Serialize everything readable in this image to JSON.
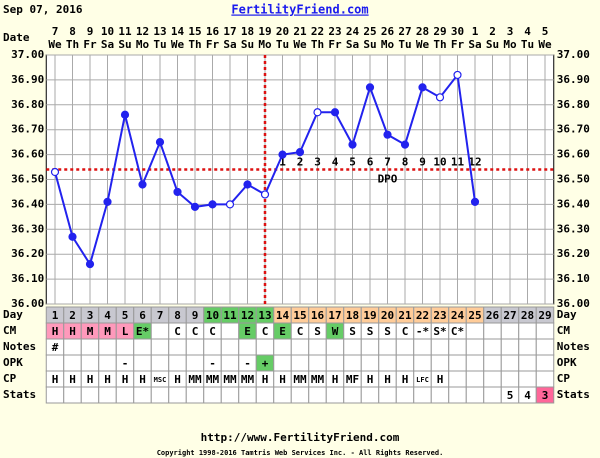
{
  "chart_data": {
    "type": "line",
    "title": "Sep 07, 2016",
    "site": "FertilityFriend.com",
    "date_label": "Date",
    "dates": [
      7,
      8,
      9,
      10,
      11,
      12,
      13,
      14,
      15,
      16,
      17,
      18,
      19,
      20,
      21,
      22,
      23,
      24,
      25,
      26,
      27,
      28,
      29,
      30,
      1,
      2,
      3,
      4,
      5
    ],
    "weekdays": [
      "We",
      "Th",
      "Fr",
      "Sa",
      "Su",
      "Mo",
      "Tu",
      "We",
      "Th",
      "Fr",
      "Sa",
      "Su",
      "Mo",
      "Tu",
      "We",
      "Th",
      "Fr",
      "Sa",
      "Su",
      "Mo",
      "Tu",
      "We",
      "Th",
      "Fr",
      "Sa",
      "Su",
      "Mo",
      "Tu",
      "We"
    ],
    "values": [
      36.53,
      36.27,
      36.16,
      36.41,
      36.76,
      36.48,
      36.65,
      36.45,
      36.39,
      36.4,
      36.4,
      36.48,
      36.44,
      36.6,
      36.61,
      36.77,
      36.77,
      36.64,
      36.87,
      36.68,
      36.64,
      36.87,
      36.83,
      36.92,
      36.41,
      null,
      null,
      null,
      null
    ],
    "markers": [
      "open",
      "filled",
      "filled",
      "filled",
      "filled",
      "filled",
      "filled",
      "filled",
      "filled",
      "filled",
      "open",
      "filled",
      "open",
      "filled",
      "filled",
      "open",
      "filled",
      "filled",
      "filled",
      "filled",
      "filled",
      "filled",
      "open",
      "open",
      "filled",
      null,
      null,
      null,
      null
    ],
    "color": "#2222ee",
    "ylim": [
      36.0,
      37.0
    ],
    "yticks": [
      {
        "value": 36.0,
        "label": "36.00"
      },
      {
        "value": 36.1,
        "label": "36.10"
      },
      {
        "value": 36.2,
        "label": "36.20"
      },
      {
        "value": 36.3,
        "label": "36.30"
      },
      {
        "value": 36.4,
        "label": "36.40"
      },
      {
        "value": 36.5,
        "label": "36.50"
      },
      {
        "value": 36.6,
        "label": "36.60"
      },
      {
        "value": 36.7,
        "label": "36.70"
      },
      {
        "value": 36.8,
        "label": "36.80"
      },
      {
        "value": 36.9,
        "label": "36.90"
      },
      {
        "value": 37.0,
        "label": "37.00"
      }
    ],
    "grid": true,
    "coverline": 36.54,
    "ovulation_day": 13,
    "marker_line_color": "#dd1111",
    "dpo": [
      null,
      null,
      null,
      null,
      null,
      null,
      null,
      null,
      null,
      null,
      null,
      null,
      null,
      1,
      2,
      3,
      4,
      5,
      6,
      7,
      8,
      9,
      10,
      11,
      12,
      null,
      null,
      null,
      null
    ],
    "dpo_label": "DPO",
    "day_label": "Day",
    "days": [
      1,
      2,
      3,
      4,
      5,
      6,
      7,
      8,
      9,
      10,
      11,
      12,
      13,
      14,
      15,
      16,
      17,
      18,
      19,
      20,
      21,
      22,
      23,
      24,
      25,
      26,
      27,
      28,
      29
    ],
    "day_colors": [
      "#c8c8d0",
      "#c8c8d0",
      "#c8c8d0",
      "#c8c8d0",
      "#c8c8d0",
      "#c8c8d0",
      "#c8c8d0",
      "#c8c8d0",
      "#c8c8d0",
      "#66cc66",
      "#66cc66",
      "#66cc66",
      "#66cc66",
      "#ffcc99",
      "#ffcc99",
      "#ffcc99",
      "#ffcc99",
      "#ffcc99",
      "#ffcc99",
      "#ffcc99",
      "#ffcc99",
      "#ffcc99",
      "#ffcc99",
      "#ffcc99",
      "#ffcc99",
      "#c8c8d0",
      "#c8c8d0",
      "#c8c8d0",
      "#c8c8d0"
    ],
    "rows": [
      {
        "label": "CM",
        "cells": [
          "H",
          "H",
          "M",
          "M",
          "L",
          "E*",
          null,
          "C",
          "C",
          "C",
          null,
          "E",
          "C",
          "E",
          "C",
          "S",
          "W",
          "S",
          "S",
          "S",
          "C",
          "-*",
          "S*",
          "C*",
          null,
          null,
          null,
          null,
          null
        ],
        "colors": [
          "#ff99bb",
          "#ff99bb",
          "#ff99bb",
          "#ff99bb",
          "#ff99bb",
          "#66cc66",
          null,
          null,
          null,
          null,
          null,
          "#66cc66",
          null,
          "#66cc66",
          null,
          null,
          "#66cc66",
          null,
          null,
          null,
          null,
          null,
          null,
          null,
          null,
          null,
          null,
          null,
          null
        ]
      },
      {
        "label": "Notes",
        "cells": [
          "#",
          null,
          null,
          null,
          null,
          null,
          null,
          null,
          null,
          null,
          null,
          null,
          null,
          null,
          null,
          null,
          null,
          null,
          null,
          null,
          null,
          null,
          null,
          null,
          null,
          null,
          null,
          null,
          null
        ],
        "colors": [
          null,
          null,
          null,
          null,
          null,
          null,
          null,
          null,
          null,
          null,
          null,
          null,
          null,
          null,
          null,
          null,
          null,
          null,
          null,
          null,
          null,
          null,
          null,
          null,
          null,
          null,
          null,
          null,
          null
        ]
      },
      {
        "label": "OPK",
        "cells": [
          null,
          null,
          null,
          null,
          "-",
          null,
          null,
          null,
          null,
          "-",
          null,
          "-",
          "+",
          null,
          null,
          null,
          null,
          null,
          null,
          null,
          null,
          null,
          null,
          null,
          null,
          null,
          null,
          null,
          null
        ],
        "colors": [
          null,
          null,
          null,
          null,
          null,
          null,
          null,
          null,
          null,
          null,
          null,
          null,
          "#66cc66",
          null,
          null,
          null,
          null,
          null,
          null,
          null,
          null,
          null,
          null,
          null,
          null,
          null,
          null,
          null,
          null
        ]
      },
      {
        "label": "CP",
        "cells": [
          "H",
          "H",
          "H",
          "H",
          "H",
          "H",
          "MSC",
          "H",
          "MM",
          "MM",
          "MM",
          "MM",
          "H",
          "H",
          "MM",
          "MM",
          "H",
          "MF",
          "H",
          "H",
          "H",
          "LFC",
          "H",
          null,
          null,
          null,
          null,
          null,
          null
        ],
        "colors": [
          null,
          null,
          null,
          null,
          null,
          null,
          null,
          null,
          null,
          null,
          null,
          null,
          null,
          null,
          null,
          null,
          null,
          null,
          null,
          null,
          null,
          null,
          null,
          null,
          null,
          null,
          null,
          null,
          null
        ]
      },
      {
        "label": "Stats",
        "cells": [
          null,
          null,
          null,
          null,
          null,
          null,
          null,
          null,
          null,
          null,
          null,
          null,
          null,
          null,
          null,
          null,
          null,
          null,
          null,
          null,
          null,
          null,
          null,
          null,
          null,
          null,
          5,
          4,
          3
        ],
        "colors": [
          null,
          null,
          null,
          null,
          null,
          null,
          null,
          null,
          null,
          null,
          null,
          null,
          null,
          null,
          null,
          null,
          null,
          null,
          null,
          null,
          null,
          null,
          null,
          null,
          null,
          null,
          null,
          null,
          "#ff6699"
        ]
      }
    ],
    "footer_url": "http://www.FertilityFriend.com",
    "copyright": "Copyright 1998-2016 Tamtris Web Services Inc. - All Rights Reserved."
  }
}
